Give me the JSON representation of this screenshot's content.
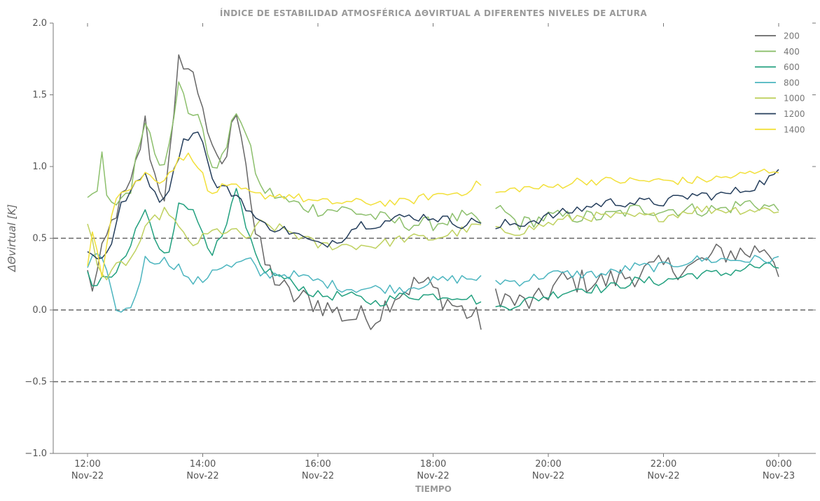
{
  "chart_data": {
    "type": "line",
    "title": "ÍNDICE DE ESTABILIDAD ATMOSFÉRICA ΔΘVIRTUAL A DIFERENTES NIVELES DE ALTURA",
    "xlabel": "TIEMPO",
    "ylabel": "ΔΘvirtual [K]",
    "ylim": [
      -1.0,
      2.0
    ],
    "yticks": [
      "−1.0",
      "−0.5",
      "0.0",
      "0.5",
      "1.0",
      "1.5",
      "2.0"
    ],
    "x_range_hours": [
      12.0,
      24.0
    ],
    "xtick_hours": [
      12,
      14,
      16,
      18,
      20,
      22,
      24
    ],
    "xticks": [
      {
        "time": "12:00",
        "date": "Nov-22"
      },
      {
        "time": "14:00",
        "date": "Nov-22"
      },
      {
        "time": "16:00",
        "date": "Nov-22"
      },
      {
        "time": "18:00",
        "date": "Nov-22"
      },
      {
        "time": "20:00",
        "date": "Nov-22"
      },
      {
        "time": "22:00",
        "date": "Nov-22"
      },
      {
        "time": "00:00",
        "date": "Nov-23"
      }
    ],
    "reference_lines": [
      0.5,
      0.0,
      -0.5
    ],
    "legend_position": "top-right",
    "data_gap_hours": [
      18.9,
      19.0
    ],
    "x_step_minutes": 5,
    "series": [
      {
        "name": "200",
        "color": "#666666",
        "jitter": 0.09,
        "anchors": [
          [
            12.0,
            0.25
          ],
          [
            12.1,
            0.15
          ],
          [
            12.3,
            0.45
          ],
          [
            12.5,
            0.7
          ],
          [
            12.75,
            0.85
          ],
          [
            13.0,
            1.3
          ],
          [
            13.15,
            0.95
          ],
          [
            13.35,
            0.8
          ],
          [
            13.5,
            1.3
          ],
          [
            13.6,
            1.8
          ],
          [
            13.8,
            1.65
          ],
          [
            14.0,
            1.45
          ],
          [
            14.2,
            1.0
          ],
          [
            14.4,
            1.05
          ],
          [
            14.6,
            1.45
          ],
          [
            14.75,
            1.05
          ],
          [
            14.9,
            0.55
          ],
          [
            15.1,
            0.3
          ],
          [
            15.5,
            0.1
          ],
          [
            16.0,
            0.05
          ],
          [
            16.5,
            -0.05
          ],
          [
            17.0,
            -0.05
          ],
          [
            17.3,
            0.1
          ],
          [
            17.8,
            0.2
          ],
          [
            18.3,
            0.05
          ],
          [
            18.9,
            -0.1
          ],
          [
            19.0,
            0.15
          ],
          [
            19.4,
            0.05
          ],
          [
            19.8,
            0.05
          ],
          [
            20.2,
            0.2
          ],
          [
            20.6,
            0.2
          ],
          [
            21.0,
            0.2
          ],
          [
            21.5,
            0.25
          ],
          [
            22.0,
            0.3
          ],
          [
            22.5,
            0.3
          ],
          [
            23.0,
            0.4
          ],
          [
            23.5,
            0.4
          ],
          [
            23.8,
            0.45
          ],
          [
            24.0,
            0.3
          ]
        ]
      },
      {
        "name": "400",
        "color": "#8cbf6c",
        "jitter": 0.05,
        "anchors": [
          [
            12.0,
            0.78
          ],
          [
            12.15,
            0.75
          ],
          [
            12.25,
            1.1
          ],
          [
            12.35,
            0.7
          ],
          [
            12.5,
            0.75
          ],
          [
            12.75,
            0.85
          ],
          [
            13.0,
            1.35
          ],
          [
            13.2,
            1.05
          ],
          [
            13.35,
            1.05
          ],
          [
            13.6,
            1.6
          ],
          [
            13.75,
            1.35
          ],
          [
            13.95,
            1.4
          ],
          [
            14.1,
            1.0
          ],
          [
            14.35,
            1.05
          ],
          [
            14.6,
            1.42
          ],
          [
            14.8,
            1.15
          ],
          [
            15.0,
            0.85
          ],
          [
            15.5,
            0.75
          ],
          [
            16.0,
            0.7
          ],
          [
            16.5,
            0.7
          ],
          [
            17.0,
            0.65
          ],
          [
            17.5,
            0.6
          ],
          [
            18.0,
            0.6
          ],
          [
            18.5,
            0.65
          ],
          [
            18.9,
            0.6
          ],
          [
            19.0,
            0.75
          ],
          [
            19.5,
            0.6
          ],
          [
            20.0,
            0.65
          ],
          [
            20.5,
            0.65
          ],
          [
            21.0,
            0.65
          ],
          [
            21.5,
            0.7
          ],
          [
            22.0,
            0.7
          ],
          [
            22.5,
            0.7
          ],
          [
            23.0,
            0.7
          ],
          [
            23.5,
            0.75
          ],
          [
            24.0,
            0.7
          ]
        ]
      },
      {
        "name": "600",
        "color": "#22a07f",
        "jitter": 0.035,
        "anchors": [
          [
            12.0,
            0.3
          ],
          [
            12.1,
            0.1
          ],
          [
            12.3,
            0.25
          ],
          [
            12.5,
            0.25
          ],
          [
            12.75,
            0.45
          ],
          [
            13.0,
            0.7
          ],
          [
            13.2,
            0.45
          ],
          [
            13.4,
            0.35
          ],
          [
            13.6,
            0.8
          ],
          [
            13.8,
            0.7
          ],
          [
            14.0,
            0.55
          ],
          [
            14.15,
            0.4
          ],
          [
            14.35,
            0.5
          ],
          [
            14.6,
            0.85
          ],
          [
            14.75,
            0.55
          ],
          [
            15.0,
            0.3
          ],
          [
            15.5,
            0.2
          ],
          [
            16.0,
            0.1
          ],
          [
            16.5,
            0.1
          ],
          [
            17.0,
            0.05
          ],
          [
            17.5,
            0.1
          ],
          [
            18.0,
            0.1
          ],
          [
            18.5,
            0.1
          ],
          [
            18.9,
            0.05
          ],
          [
            19.0,
            0.0
          ],
          [
            19.5,
            0.05
          ],
          [
            20.0,
            0.1
          ],
          [
            20.5,
            0.15
          ],
          [
            21.0,
            0.15
          ],
          [
            21.5,
            0.2
          ],
          [
            22.0,
            0.2
          ],
          [
            22.5,
            0.25
          ],
          [
            23.0,
            0.25
          ],
          [
            23.5,
            0.3
          ],
          [
            24.0,
            0.3
          ]
        ]
      },
      {
        "name": "800",
        "color": "#4cb5bf",
        "jitter": 0.035,
        "anchors": [
          [
            12.0,
            0.3
          ],
          [
            12.15,
            0.4
          ],
          [
            12.3,
            0.3
          ],
          [
            12.45,
            0.05
          ],
          [
            12.6,
            -0.03
          ],
          [
            12.8,
            0.05
          ],
          [
            13.0,
            0.35
          ],
          [
            13.3,
            0.35
          ],
          [
            13.6,
            0.3
          ],
          [
            13.75,
            0.2
          ],
          [
            14.0,
            0.2
          ],
          [
            14.2,
            0.3
          ],
          [
            14.5,
            0.3
          ],
          [
            14.8,
            0.35
          ],
          [
            15.0,
            0.25
          ],
          [
            15.5,
            0.25
          ],
          [
            16.0,
            0.2
          ],
          [
            16.5,
            0.15
          ],
          [
            17.0,
            0.15
          ],
          [
            17.5,
            0.15
          ],
          [
            18.0,
            0.2
          ],
          [
            18.5,
            0.22
          ],
          [
            18.9,
            0.22
          ],
          [
            19.0,
            0.2
          ],
          [
            19.5,
            0.2
          ],
          [
            20.0,
            0.25
          ],
          [
            20.5,
            0.25
          ],
          [
            21.0,
            0.25
          ],
          [
            21.5,
            0.3
          ],
          [
            22.0,
            0.3
          ],
          [
            22.5,
            0.35
          ],
          [
            23.0,
            0.35
          ],
          [
            23.5,
            0.35
          ],
          [
            24.0,
            0.35
          ]
        ]
      },
      {
        "name": "1000",
        "color": "#bfd160",
        "jitter": 0.035,
        "anchors": [
          [
            12.0,
            0.6
          ],
          [
            12.2,
            0.3
          ],
          [
            12.35,
            0.2
          ],
          [
            12.5,
            0.3
          ],
          [
            12.75,
            0.35
          ],
          [
            13.0,
            0.55
          ],
          [
            13.2,
            0.65
          ],
          [
            13.4,
            0.7
          ],
          [
            13.6,
            0.55
          ],
          [
            13.8,
            0.45
          ],
          [
            14.0,
            0.5
          ],
          [
            14.2,
            0.55
          ],
          [
            14.5,
            0.55
          ],
          [
            14.8,
            0.5
          ],
          [
            15.0,
            0.6
          ],
          [
            15.5,
            0.55
          ],
          [
            16.0,
            0.45
          ],
          [
            16.5,
            0.45
          ],
          [
            17.0,
            0.45
          ],
          [
            17.5,
            0.5
          ],
          [
            18.0,
            0.5
          ],
          [
            18.5,
            0.55
          ],
          [
            18.9,
            0.6
          ],
          [
            19.0,
            0.55
          ],
          [
            19.5,
            0.55
          ],
          [
            20.0,
            0.6
          ],
          [
            20.5,
            0.65
          ],
          [
            21.0,
            0.65
          ],
          [
            21.5,
            0.65
          ],
          [
            22.0,
            0.65
          ],
          [
            22.5,
            0.7
          ],
          [
            23.0,
            0.7
          ],
          [
            23.5,
            0.7
          ],
          [
            24.0,
            0.7
          ]
        ]
      },
      {
        "name": "1200",
        "color": "#253e5c",
        "jitter": 0.035,
        "anchors": [
          [
            12.0,
            0.4
          ],
          [
            12.2,
            0.35
          ],
          [
            12.4,
            0.45
          ],
          [
            12.6,
            0.75
          ],
          [
            12.8,
            0.85
          ],
          [
            13.0,
            0.95
          ],
          [
            13.2,
            0.8
          ],
          [
            13.35,
            0.75
          ],
          [
            13.5,
            1.0
          ],
          [
            13.7,
            1.2
          ],
          [
            13.85,
            1.25
          ],
          [
            14.0,
            1.2
          ],
          [
            14.15,
            0.9
          ],
          [
            14.35,
            0.85
          ],
          [
            14.6,
            0.8
          ],
          [
            14.8,
            0.7
          ],
          [
            15.0,
            0.6
          ],
          [
            15.5,
            0.55
          ],
          [
            16.0,
            0.45
          ],
          [
            16.4,
            0.5
          ],
          [
            16.7,
            0.6
          ],
          [
            17.0,
            0.6
          ],
          [
            17.5,
            0.65
          ],
          [
            18.0,
            0.65
          ],
          [
            18.5,
            0.6
          ],
          [
            18.9,
            0.63
          ],
          [
            19.0,
            0.5
          ],
          [
            19.2,
            0.6
          ],
          [
            19.5,
            0.6
          ],
          [
            20.0,
            0.65
          ],
          [
            20.5,
            0.7
          ],
          [
            21.0,
            0.75
          ],
          [
            21.5,
            0.75
          ],
          [
            22.0,
            0.75
          ],
          [
            22.5,
            0.8
          ],
          [
            23.0,
            0.8
          ],
          [
            23.5,
            0.85
          ],
          [
            24.0,
            0.95
          ]
        ]
      },
      {
        "name": "1400",
        "color": "#f2e03a",
        "jitter": 0.03,
        "anchors": [
          [
            12.0,
            0.3
          ],
          [
            12.1,
            0.6
          ],
          [
            12.25,
            0.25
          ],
          [
            12.4,
            0.65
          ],
          [
            12.5,
            0.8
          ],
          [
            12.75,
            0.85
          ],
          [
            13.0,
            0.95
          ],
          [
            13.3,
            0.9
          ],
          [
            13.6,
            1.05
          ],
          [
            13.8,
            1.08
          ],
          [
            13.95,
            1.0
          ],
          [
            14.1,
            0.8
          ],
          [
            14.3,
            0.85
          ],
          [
            14.6,
            0.85
          ],
          [
            14.9,
            0.8
          ],
          [
            15.2,
            0.8
          ],
          [
            15.5,
            0.8
          ],
          [
            16.0,
            0.75
          ],
          [
            16.5,
            0.75
          ],
          [
            17.0,
            0.75
          ],
          [
            17.5,
            0.75
          ],
          [
            18.0,
            0.8
          ],
          [
            18.5,
            0.82
          ],
          [
            18.9,
            0.9
          ],
          [
            19.0,
            0.8
          ],
          [
            19.5,
            0.85
          ],
          [
            20.0,
            0.85
          ],
          [
            20.5,
            0.9
          ],
          [
            21.0,
            0.9
          ],
          [
            21.5,
            0.9
          ],
          [
            22.0,
            0.9
          ],
          [
            22.5,
            0.9
          ],
          [
            23.0,
            0.92
          ],
          [
            23.5,
            0.95
          ],
          [
            24.0,
            0.98
          ]
        ]
      }
    ]
  }
}
